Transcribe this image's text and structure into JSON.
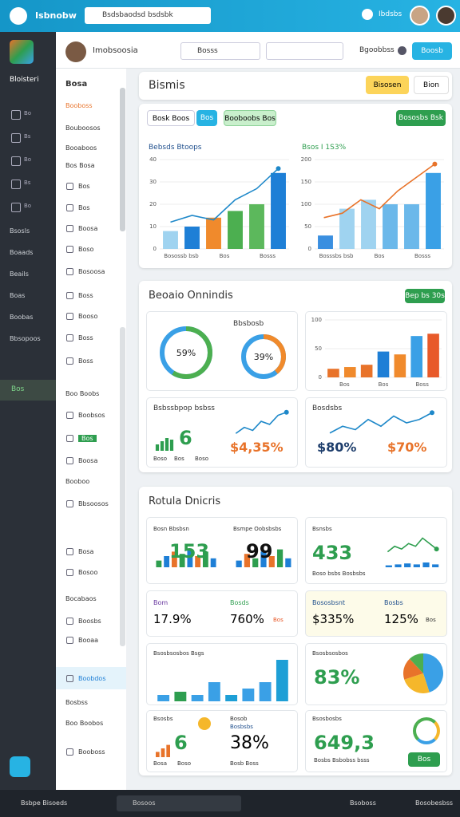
{
  "topbar": {
    "app": "Isbnobw",
    "search": "Bsdsbaodsd bsdsbk",
    "user": "Ibdsbs"
  },
  "rail": {
    "brand": "Bloisteri",
    "icons": [
      "Bo",
      "Bs",
      "Bo",
      "Bs",
      "Bo"
    ],
    "items": [
      "Bsosls",
      "Boaads",
      "Beails",
      "Boas",
      "Boobas",
      "Bbsopoos"
    ],
    "active": "Bos"
  },
  "sidebar": {
    "title": "Bosa",
    "highlight": "Booboss",
    "items": [
      "Bouboosos",
      "Booaboos",
      "Bos Bosa",
      "Bos",
      "Bos",
      "Boosa",
      "Boso",
      "Bosoosa",
      "Boss",
      "Booso",
      "Boss",
      "Boss",
      "Boo Boobs",
      "Boobsos",
      "Bos",
      "Boosa",
      "Booboo",
      "Bbsoosos",
      "Bosa",
      "Bosoo",
      "Bocabaos",
      "Boosbs",
      "Booaa",
      "Boobdos",
      "Bosbss",
      "Boo Boobos",
      "Booboss"
    ]
  },
  "header": {
    "name": "Imobsoosia",
    "search": "Bosss",
    "link": "Bgoobbss",
    "button": "Boosb"
  },
  "page": {
    "title": "Bismis",
    "primary": "Bisosen",
    "secondary": "Bion"
  },
  "panel1": {
    "chips": [
      "Bosk Boos",
      "Bos",
      "Booboobs Bos"
    ],
    "button": "Bososbs Bsk",
    "chart1": {
      "title": "Bebsds Btoops",
      "yticks": [
        40,
        30,
        20,
        10,
        0
      ],
      "ylim": [
        0,
        40
      ],
      "bars": [
        8,
        10,
        14,
        17,
        20,
        34
      ],
      "colors": [
        "#9fd3f0",
        "#1e7fd6",
        "#f08a2c",
        "#4caf50",
        "#5cb85c",
        "#1e7fd6"
      ],
      "line": [
        12,
        15,
        13,
        22,
        27,
        36
      ],
      "line_color": "#1e88c9",
      "xlabels": [
        "Bosossb bsb",
        "Bos",
        "Bosss"
      ]
    },
    "chart2": {
      "title": "Bsos I 1S3%",
      "yticks": [
        200,
        150,
        100,
        50,
        0
      ],
      "ylim": [
        0,
        200
      ],
      "bars": [
        30,
        90,
        110,
        100,
        100,
        170
      ],
      "colors": [
        "#3a8fe0",
        "#9fd3f0",
        "#9fd3f0",
        "#6bb8ea",
        "#6bb8ea",
        "#3aa0e6"
      ],
      "line": [
        70,
        80,
        110,
        90,
        130,
        160,
        190
      ],
      "line_color": "#e8732a",
      "xlabels": [
        "Bosssbs bsb",
        "Bos",
        "Bosss"
      ]
    }
  },
  "panel2": {
    "title": "Beoaio Onnindis",
    "button": "Bep bs 30s",
    "donut1": {
      "value": 59,
      "value_label": "59%",
      "color": "#4caf50"
    },
    "donut_caption": "Bbsbosb",
    "donut2": {
      "value": 39,
      "value_label": "39%",
      "color": "#f08a2c"
    },
    "bars": {
      "yticks": [
        100,
        50,
        0
      ],
      "ylim": [
        0,
        100
      ],
      "bars": [
        15,
        18,
        22,
        45,
        40,
        72,
        76
      ],
      "colors": [
        "#e8732a",
        "#f08a2c",
        "#e8732a",
        "#1e7fd6",
        "#f08a2c",
        "#3aa0e6",
        "#e85a2a"
      ],
      "xlabels": [
        "Bos",
        "Bos",
        "Boss"
      ]
    },
    "card3": {
      "title": "Bsbssbpop bsbss",
      "big": "6",
      "figure": "$4,35%",
      "labels": [
        "Boso",
        "Bos",
        "Boso"
      ],
      "spark": {
        "bars": [
          4,
          6,
          8,
          7
        ],
        "colors": [
          "#2e9e4f"
        ],
        "ylim": [
          0,
          10
        ]
      },
      "trend": {
        "line": [
          2,
          4,
          3,
          6,
          5,
          8,
          9
        ],
        "line_color": "#1e88c9"
      }
    },
    "card4": {
      "title": "Bosdsbs",
      "figure1": "$80%",
      "figure2": "$70%",
      "trend": {
        "line": [
          3,
          5,
          4,
          7,
          5,
          8,
          6,
          7,
          9
        ],
        "line_color": "#1e88c9"
      }
    }
  },
  "panel3": {
    "title": "Rotula Dnicris",
    "c1": {
      "title": "Bosn Bbsbsn",
      "figure": "153",
      "spark": {
        "bars": [
          3,
          5,
          7,
          6,
          8,
          5,
          7,
          4
        ],
        "colors": [
          "#2e9e4f",
          "#1e7fd6",
          "#e8732a"
        ],
        "ylim": [
          0,
          10
        ]
      }
    },
    "c2": {
      "title": "Bsmpe Oobsbsbs",
      "figure": "99",
      "spark": {
        "bars": [
          3,
          6,
          4,
          7,
          5,
          8,
          4
        ],
        "colors": [
          "#1e7fd6",
          "#e8732a",
          "#2e9e4f"
        ],
        "ylim": [
          0,
          10
        ]
      }
    },
    "c3": {
      "title": "Bsnsbs",
      "figure": "433",
      "sub": "Boso bsbs Bosbsbs",
      "trend": {
        "line": [
          2,
          4,
          3,
          5,
          4,
          7,
          5,
          3
        ],
        "line_color": "#2e9e4f"
      },
      "spark": {
        "bars": [
          2,
          3,
          4,
          3,
          5,
          3
        ],
        "colors": [
          "#1e7fd6"
        ],
        "ylim": [
          0,
          10
        ]
      }
    },
    "c4": {
      "title": "Bom",
      "figure": "17.9%",
      "title2": "Bosds",
      "figure2": "760%",
      "tag": "Bos"
    },
    "c5": {
      "title": "Bososbsnt",
      "figure": "$335%",
      "title2": "Bosbs",
      "figure2": "125%",
      "tag": "Bos"
    },
    "c6": {
      "title": "Bsosbsosbos Bsgs",
      "bars": [
        4,
        6,
        4,
        12,
        4,
        8,
        12,
        26
      ],
      "colors": [
        "#3aa0e6",
        "#2e9e4f",
        "#3aa0e6",
        "#3aa0e6",
        "#1e9fd6",
        "#3aa0e6",
        "#3aa0e6",
        "#1e9fd6"
      ],
      "ylim": [
        0,
        28
      ]
    },
    "c7": {
      "title": "Bsosbsosbos",
      "figure": "83%",
      "slices": [
        45,
        25,
        18,
        12
      ],
      "colors": [
        "#3aa0e6",
        "#f5b72b",
        "#e8732a",
        "#4caf50"
      ]
    },
    "c8": {
      "title": "Bsosbs",
      "figure": "6",
      "labels": [
        "Bosa",
        "Boso"
      ],
      "spark": {
        "bars": [
          3,
          5,
          7
        ],
        "colors": [
          "#e8732a"
        ],
        "ylim": [
          0,
          10
        ]
      },
      "title2": "Bosob",
      "sub2": "Bosbsbs",
      "figure2": "38%",
      "sub3": "Bosb Boss"
    },
    "c9": {
      "title": "Bsosbosbs",
      "figure": "649,3",
      "sub": "Bosbs Bsbobss bsss",
      "button": "Bos"
    }
  },
  "bottombar": {
    "title": "Bsbpe Bisoeds",
    "search": "Bosoos",
    "item1": "Bsoboss",
    "item2": "Bosobesbss"
  }
}
